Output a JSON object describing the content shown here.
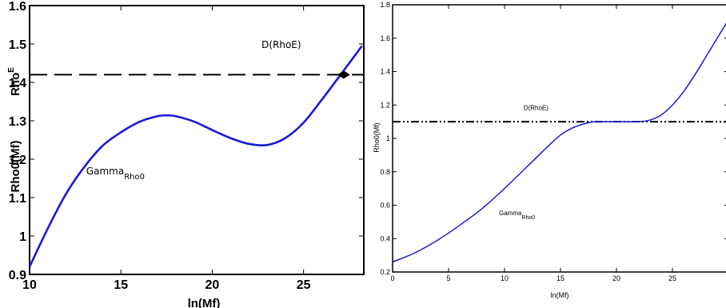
{
  "chart_data": [
    {
      "type": "line",
      "xlabel": "ln(Mf)",
      "ylabel": "Rho0(Mf)",
      "ylabel_extra": {
        "base": "Rho",
        "sup": "E"
      },
      "xlim": [
        10,
        28.3
      ],
      "ylim": [
        0.9,
        1.6
      ],
      "xticks": [
        10,
        15,
        20,
        25
      ],
      "yticks": [
        0.9,
        1,
        1.1,
        1.2,
        1.3,
        1.4,
        1.5,
        1.6
      ],
      "series": [
        {
          "color": "#1a1ad6",
          "x": [
            10,
            11,
            12,
            13,
            14,
            15,
            16,
            17,
            17.5,
            18,
            19,
            20,
            21,
            22,
            23,
            24,
            25,
            26,
            27,
            28.2
          ],
          "y": [
            0.92,
            1.02,
            1.11,
            1.18,
            1.235,
            1.27,
            1.297,
            1.312,
            1.314,
            1.312,
            1.298,
            1.276,
            1.255,
            1.24,
            1.237,
            1.255,
            1.295,
            1.355,
            1.418,
            1.495
          ]
        }
      ],
      "hline": {
        "y": 1.42,
        "style": "dashed",
        "color": "#000000"
      },
      "marker": {
        "x": 27.2,
        "y": 1.42,
        "shape": "diamond"
      },
      "annotations": [
        {
          "text": "D(RhoE)",
          "x": 22.7,
          "y": 1.49
        },
        {
          "text": "Gamma",
          "sub": "Rho0",
          "x": 13.1,
          "y": 1.16
        }
      ]
    },
    {
      "type": "line",
      "xlabel": "ln(Mf)",
      "ylabel": "Rho0(Mf)",
      "xlim": [
        0,
        30
      ],
      "ylim": [
        0.2,
        1.8
      ],
      "xticks": [
        0,
        5,
        10,
        15,
        20,
        25
      ],
      "yticks": [
        0.2,
        0.4,
        0.6,
        0.8,
        1,
        1.2,
        1.4,
        1.6,
        1.8
      ],
      "series": [
        {
          "color": "#1a1ad6",
          "x": [
            0,
            2,
            4,
            6,
            8,
            10,
            12,
            14,
            15,
            16,
            17,
            18,
            19,
            20,
            21,
            22,
            23,
            24,
            25,
            26,
            27,
            28,
            29,
            30
          ],
          "y": [
            0.26,
            0.315,
            0.39,
            0.48,
            0.58,
            0.7,
            0.83,
            0.96,
            1.02,
            1.06,
            1.085,
            1.1,
            1.1,
            1.1,
            1.1,
            1.1,
            1.11,
            1.14,
            1.2,
            1.28,
            1.38,
            1.49,
            1.6,
            1.71
          ]
        }
      ],
      "hline": {
        "y": 1.1,
        "style": "dash-dot",
        "color": "#000000"
      },
      "annotations": [
        {
          "text": "D(RhoE)",
          "x": 11.7,
          "y": 1.17
        },
        {
          "text": "Gamma",
          "sub": "Rho0",
          "x": 9.5,
          "y": 0.54
        }
      ]
    }
  ]
}
